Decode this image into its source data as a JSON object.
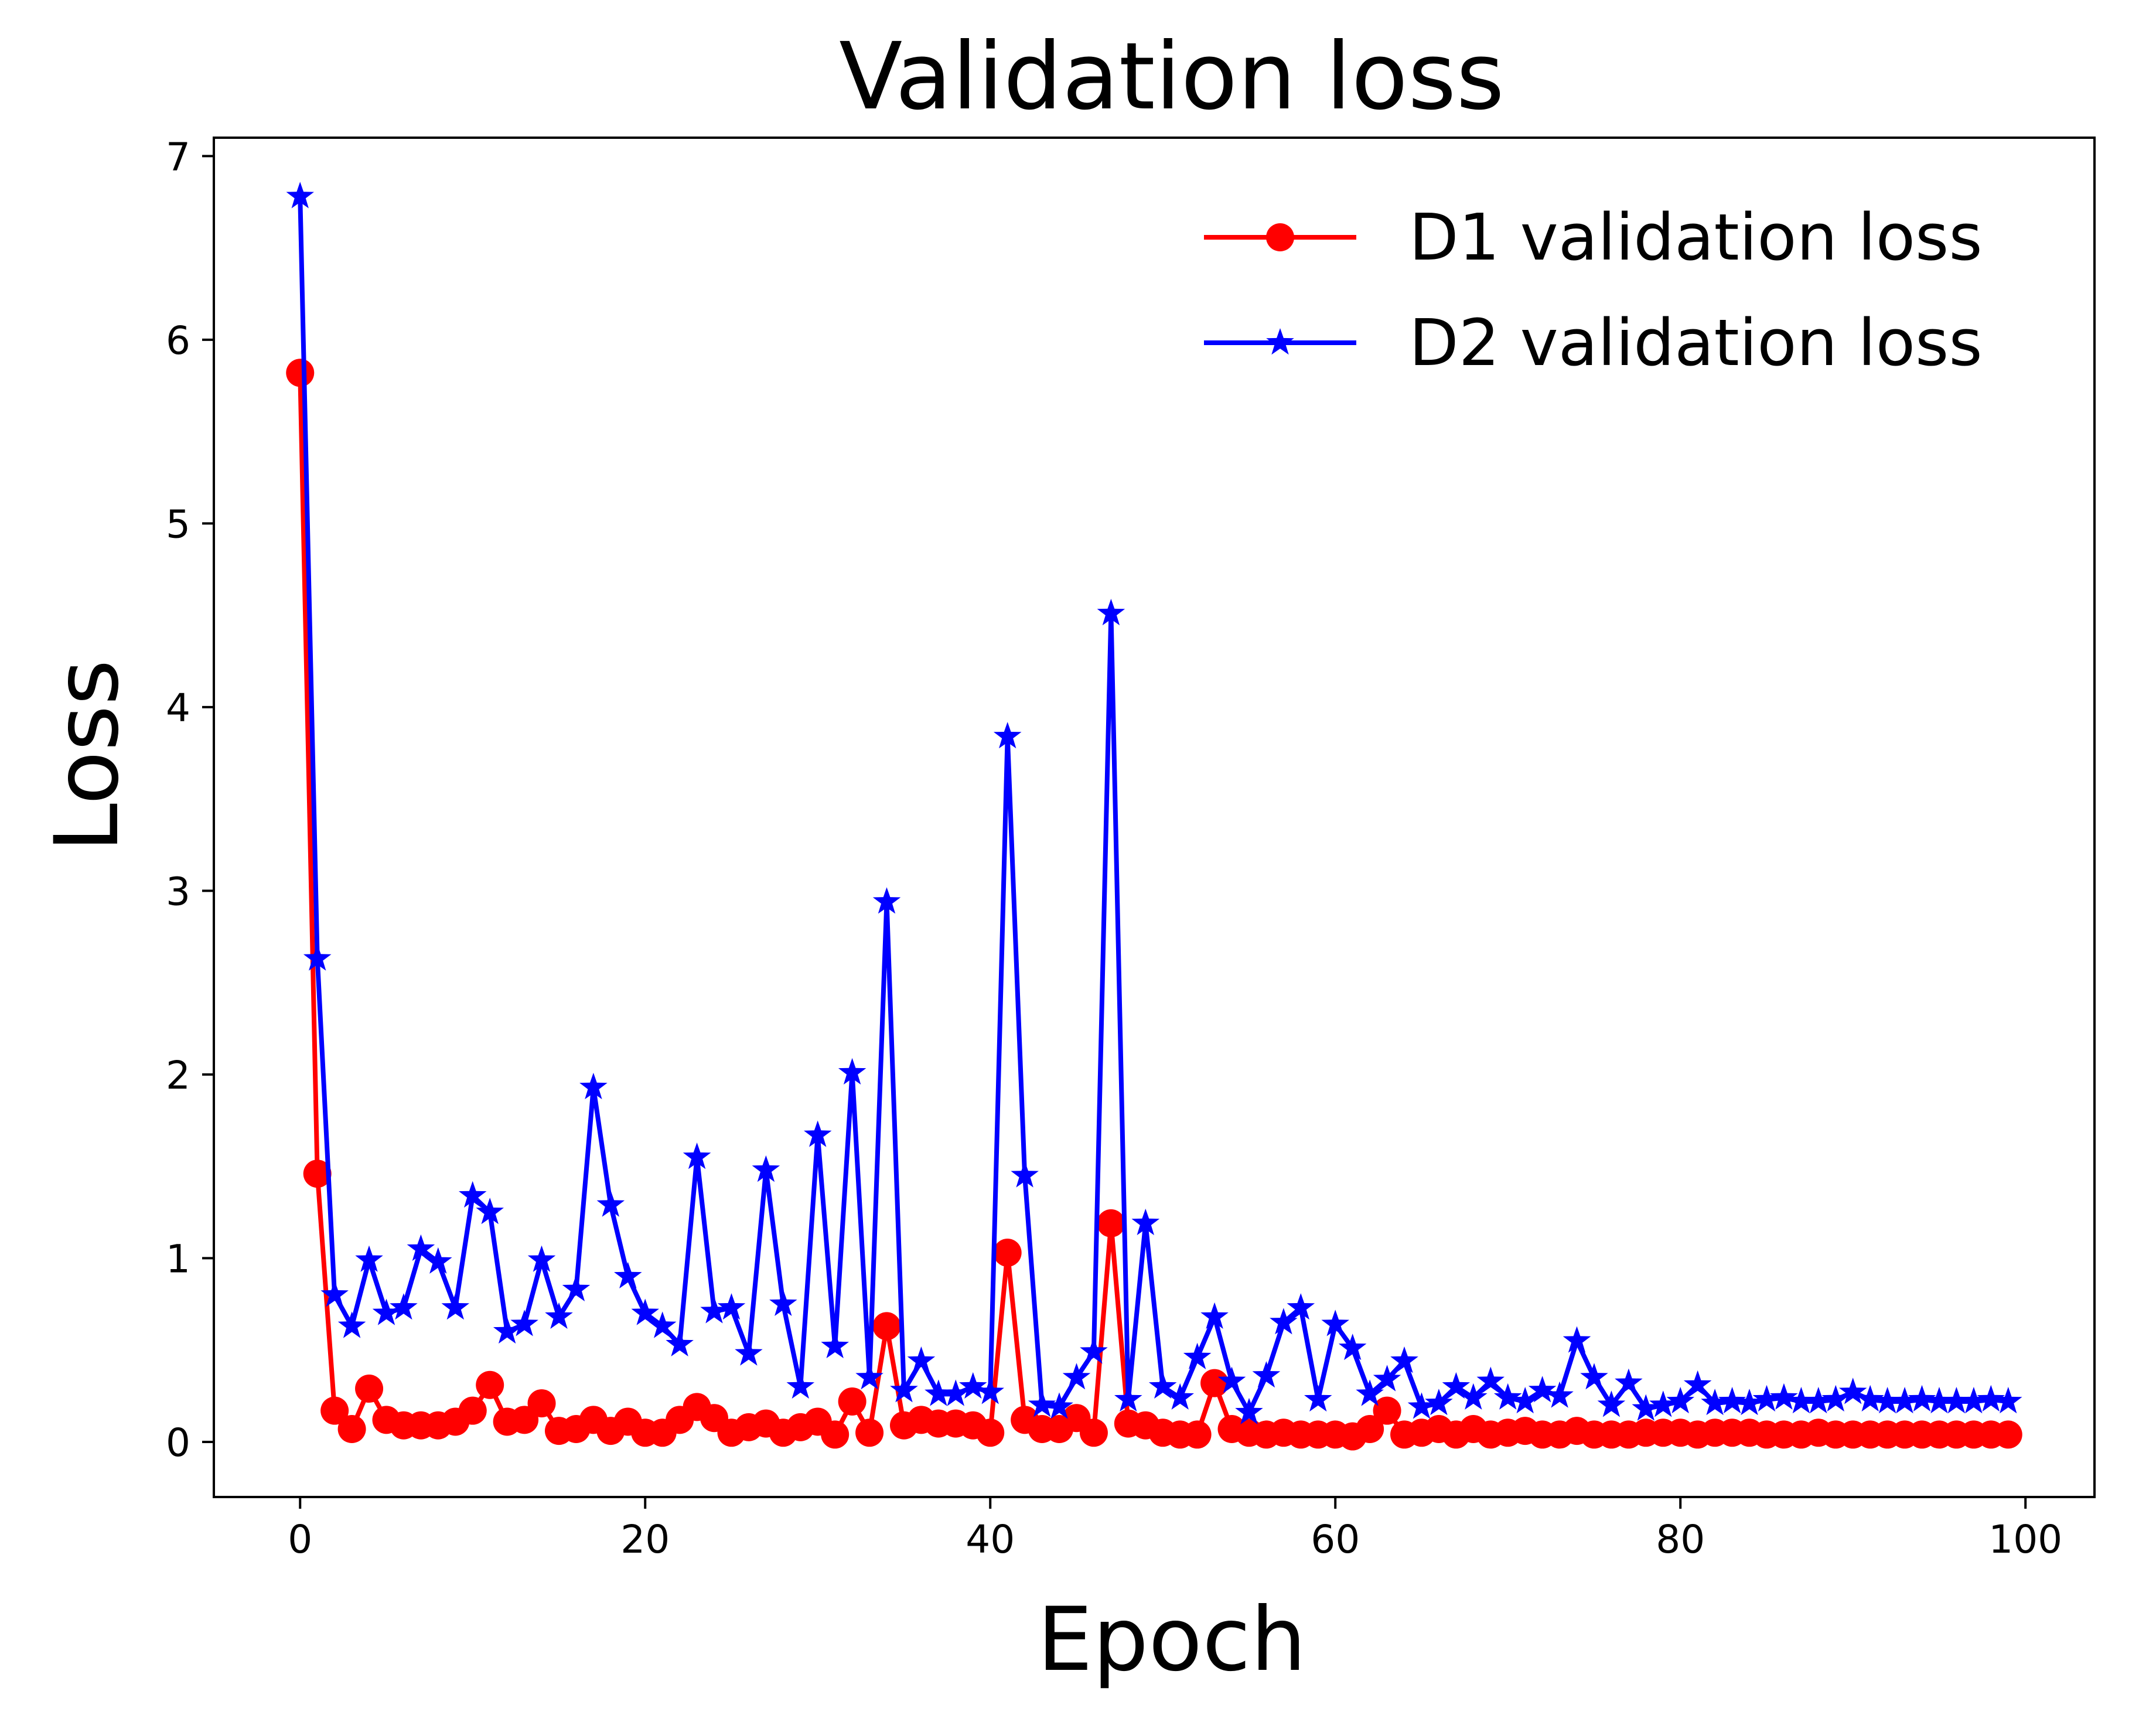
{
  "chart_data": {
    "type": "line",
    "title": "Validation loss",
    "xlabel": "Epoch",
    "ylabel": "Loss",
    "xlim": [
      -5,
      104
    ],
    "ylim": [
      -0.3,
      7.1
    ],
    "x_ticks": [
      0,
      20,
      40,
      60,
      80,
      100
    ],
    "y_ticks": [
      0,
      1,
      2,
      3,
      4,
      5,
      6,
      7
    ],
    "grid": false,
    "legend": "top-right",
    "x": [
      0,
      1,
      2,
      3,
      4,
      5,
      6,
      7,
      8,
      9,
      10,
      11,
      12,
      13,
      14,
      15,
      16,
      17,
      18,
      19,
      20,
      21,
      22,
      23,
      24,
      25,
      26,
      27,
      28,
      29,
      30,
      31,
      32,
      33,
      34,
      35,
      36,
      37,
      38,
      39,
      40,
      41,
      42,
      43,
      44,
      45,
      46,
      47,
      48,
      49,
      50,
      51,
      52,
      53,
      54,
      55,
      56,
      57,
      58,
      59,
      60,
      61,
      62,
      63,
      64,
      65,
      66,
      67,
      68,
      69,
      70,
      71,
      72,
      73,
      74,
      75,
      76,
      77,
      78,
      79,
      80,
      81,
      82,
      83,
      84,
      85,
      86,
      87,
      88,
      89,
      90,
      91,
      92,
      93,
      94,
      95,
      96,
      97,
      98,
      99
    ],
    "series": [
      {
        "name": "D1 validation loss",
        "color": "#ff0000",
        "marker": "circle",
        "values": [
          5.82,
          1.46,
          0.17,
          0.07,
          0.29,
          0.12,
          0.09,
          0.09,
          0.09,
          0.11,
          0.17,
          0.31,
          0.11,
          0.12,
          0.21,
          0.06,
          0.07,
          0.12,
          0.06,
          0.11,
          0.05,
          0.05,
          0.12,
          0.19,
          0.13,
          0.05,
          0.08,
          0.1,
          0.05,
          0.08,
          0.11,
          0.04,
          0.22,
          0.05,
          0.63,
          0.09,
          0.12,
          0.1,
          0.1,
          0.09,
          0.05,
          1.03,
          0.12,
          0.07,
          0.07,
          0.13,
          0.05,
          1.19,
          0.1,
          0.09,
          0.05,
          0.04,
          0.04,
          0.32,
          0.07,
          0.05,
          0.04,
          0.05,
          0.04,
          0.04,
          0.04,
          0.03,
          0.07,
          0.17,
          0.04,
          0.05,
          0.07,
          0.04,
          0.07,
          0.04,
          0.05,
          0.06,
          0.04,
          0.04,
          0.06,
          0.04,
          0.04,
          0.04,
          0.05,
          0.05,
          0.05,
          0.04,
          0.05,
          0.05,
          0.05,
          0.04,
          0.04,
          0.04,
          0.05,
          0.04,
          0.04,
          0.04,
          0.04,
          0.04,
          0.04,
          0.04,
          0.04,
          0.04,
          0.04,
          0.04
        ]
      },
      {
        "name": "D2 validation loss",
        "color": "#0000ff",
        "marker": "star",
        "values": [
          6.78,
          2.63,
          0.8,
          0.63,
          0.99,
          0.7,
          0.73,
          1.05,
          0.98,
          0.73,
          1.34,
          1.25,
          0.6,
          0.64,
          0.99,
          0.68,
          0.83,
          1.93,
          1.29,
          0.9,
          0.7,
          0.63,
          0.53,
          1.55,
          0.71,
          0.73,
          0.48,
          1.48,
          0.75,
          0.3,
          1.67,
          0.52,
          2.01,
          0.35,
          2.94,
          0.28,
          0.44,
          0.26,
          0.26,
          0.3,
          0.27,
          3.84,
          1.45,
          0.2,
          0.19,
          0.35,
          0.49,
          4.51,
          0.23,
          1.19,
          0.3,
          0.24,
          0.46,
          0.68,
          0.33,
          0.16,
          0.36,
          0.65,
          0.73,
          0.23,
          0.64,
          0.51,
          0.26,
          0.34,
          0.44,
          0.19,
          0.21,
          0.3,
          0.24,
          0.33,
          0.24,
          0.22,
          0.28,
          0.25,
          0.55,
          0.35,
          0.2,
          0.32,
          0.18,
          0.2,
          0.22,
          0.31,
          0.21,
          0.22,
          0.21,
          0.23,
          0.24,
          0.22,
          0.22,
          0.23,
          0.27,
          0.23,
          0.22,
          0.22,
          0.23,
          0.22,
          0.22,
          0.22,
          0.23,
          0.22
        ]
      }
    ]
  }
}
